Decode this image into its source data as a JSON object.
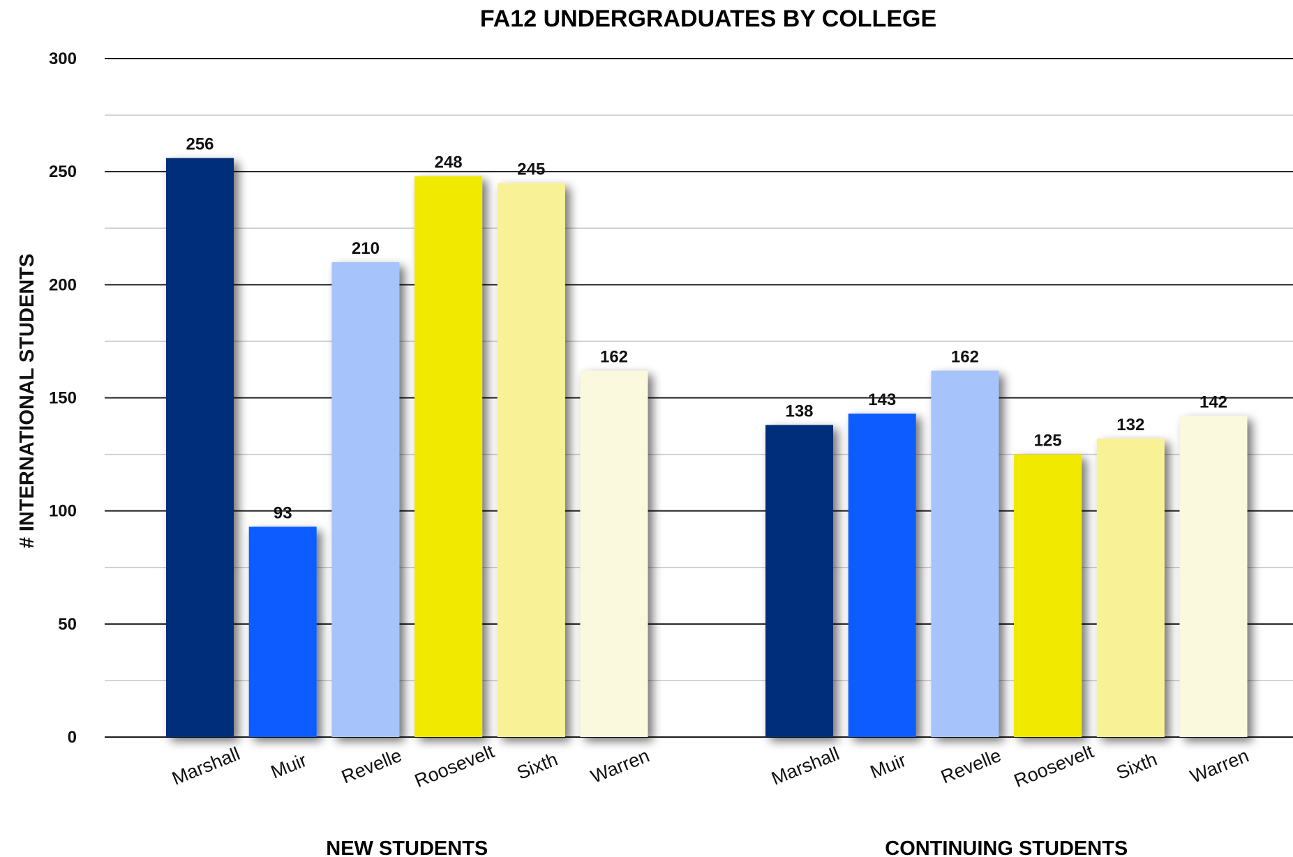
{
  "chart_data": {
    "type": "bar",
    "title": "FA12 UNDERGRADUATES BY COLLEGE",
    "ylabel": "# INTERNATIONAL STUDENTS",
    "xlabel": "",
    "ylim": [
      0,
      300
    ],
    "yticks": [
      "0",
      "50",
      "100",
      "150",
      "200",
      "250",
      "300"
    ],
    "grid": true,
    "groups": [
      {
        "label": "NEW STUDENTS",
        "categories": [
          "Marshall",
          "Muir",
          "Revelle",
          "Roosevelt",
          "Sixth",
          "Warren"
        ],
        "values": [
          256,
          93,
          210,
          248,
          245,
          162
        ]
      },
      {
        "label": "CONTINUING STUDENTS",
        "categories": [
          "Marshall",
          "Muir",
          "Revelle",
          "Roosevelt",
          "Sixth",
          "Warren"
        ],
        "values": [
          138,
          143,
          162,
          125,
          132,
          142
        ]
      }
    ],
    "colors": [
      "#002f7a",
      "#0a5cff",
      "#a6c3fb",
      "#f1e900",
      "#f9f195",
      "#faf8dd"
    ]
  }
}
